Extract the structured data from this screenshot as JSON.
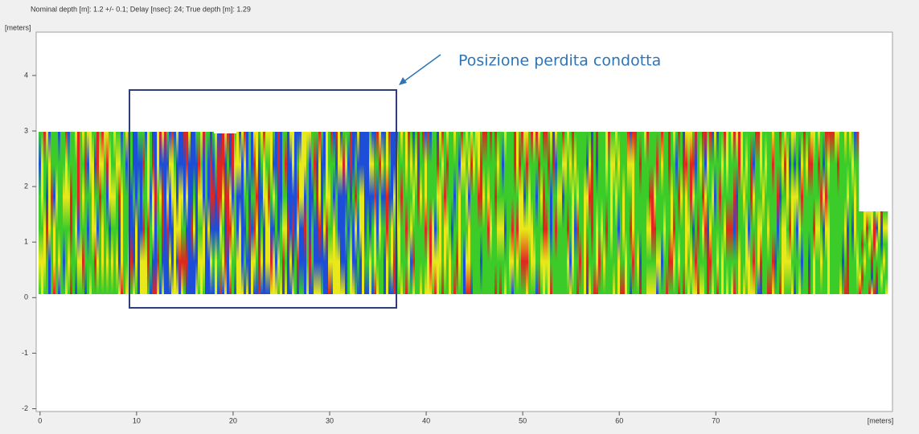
{
  "header": {
    "info": "Nominal depth [m]: 1.2 +/- 0.1;  Delay [nsec]: 24;  True depth [m]: 1.29"
  },
  "chart_data": {
    "type": "heatmap",
    "y_label": "[meters]",
    "x_label": "[meters]",
    "annotation": "Posizione perdita condotta",
    "xlim": [
      -0.4,
      88.3
    ],
    "xticks": [
      0,
      10,
      20,
      30,
      40,
      50,
      60,
      70
    ],
    "ylim": [
      -2.05,
      4.78
    ],
    "yticks": [
      -2,
      -1,
      0,
      1,
      2,
      3,
      4
    ]
  }
}
